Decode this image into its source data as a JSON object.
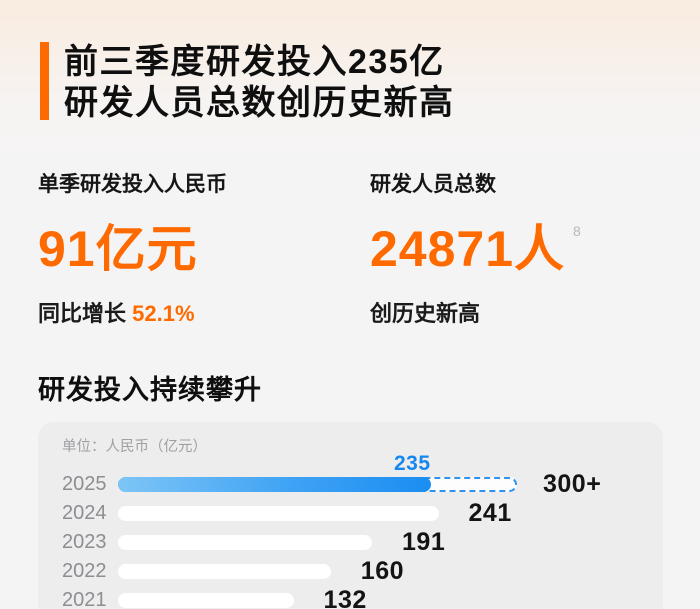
{
  "header": {
    "title_line1": "前三季度研发投入235亿",
    "title_line2": "研发人员总数创历史新高"
  },
  "stats": {
    "rd_spend": {
      "label": "单季研发投入人民币",
      "value": "91亿元",
      "sub_prefix": "同比增长 ",
      "sub_highlight": "52.1%"
    },
    "rd_headcount": {
      "label": "研发人员总数",
      "value": "24871人",
      "footnote": "8",
      "sub": "创历史新高"
    }
  },
  "colors": {
    "accent_orange": "#FF6A00",
    "highlight_blue": "#1787F0"
  },
  "chart_data": {
    "type": "bar",
    "orientation": "horizontal",
    "title": "研发投入持续攀升",
    "unit_label": "单位：人民币（亿元）",
    "categories": [
      "2025",
      "2024",
      "2023",
      "2022",
      "2021"
    ],
    "values": [
      235,
      241,
      191,
      160,
      132
    ],
    "value_labels": [
      "235",
      "241",
      "191",
      "160",
      "132"
    ],
    "projection": {
      "category": "2025",
      "value": 300,
      "label": "300+"
    },
    "xlim": [
      0,
      310
    ],
    "grid": false,
    "legend": false,
    "bar_colors": {
      "highlight_gradient": [
        "#7EC5F6",
        "#1B8DF2"
      ],
      "default_bar": "#FFFFFF",
      "highlight_value_label": "#1787F0",
      "dashed_outline": "#2F92EE"
    }
  }
}
